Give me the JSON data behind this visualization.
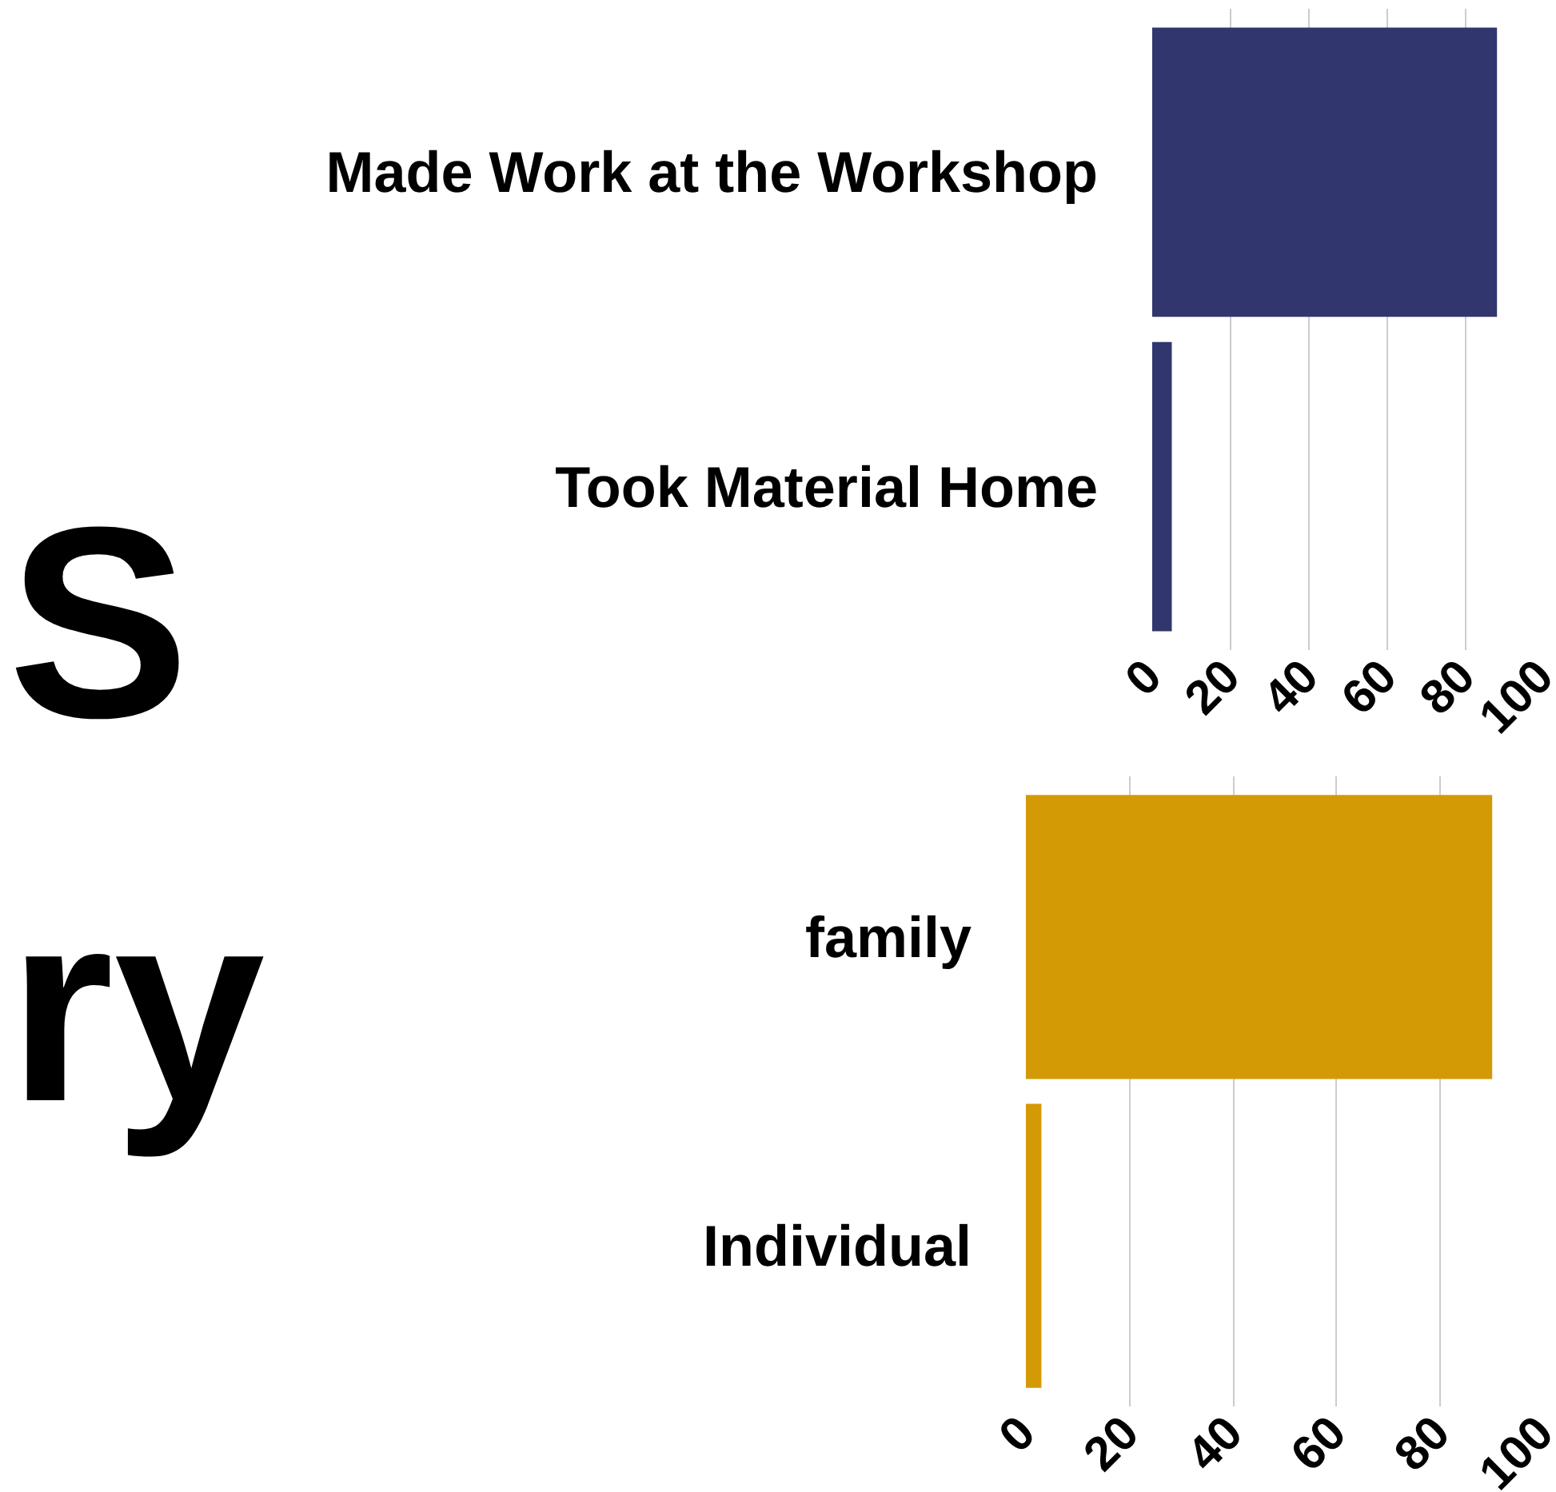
{
  "chart_data": [
    {
      "type": "bar",
      "orientation": "horizontal",
      "categories": [
        "Made Work at the Workshop",
        "Took Material Home"
      ],
      "values": [
        88,
        5
      ],
      "color": "#32366e",
      "xlim": [
        0,
        100
      ],
      "xticks": [
        0,
        20,
        40,
        60,
        80,
        100
      ],
      "grid": "x",
      "annotations": [
        "S"
      ]
    },
    {
      "type": "bar",
      "orientation": "horizontal",
      "categories": [
        "family",
        "Individual"
      ],
      "values": [
        90,
        3
      ],
      "color": "#d49a06",
      "xlim": [
        0,
        100
      ],
      "xticks": [
        0,
        20,
        40,
        60,
        80,
        100
      ],
      "grid": "x",
      "annotations": [
        "ry"
      ]
    }
  ]
}
